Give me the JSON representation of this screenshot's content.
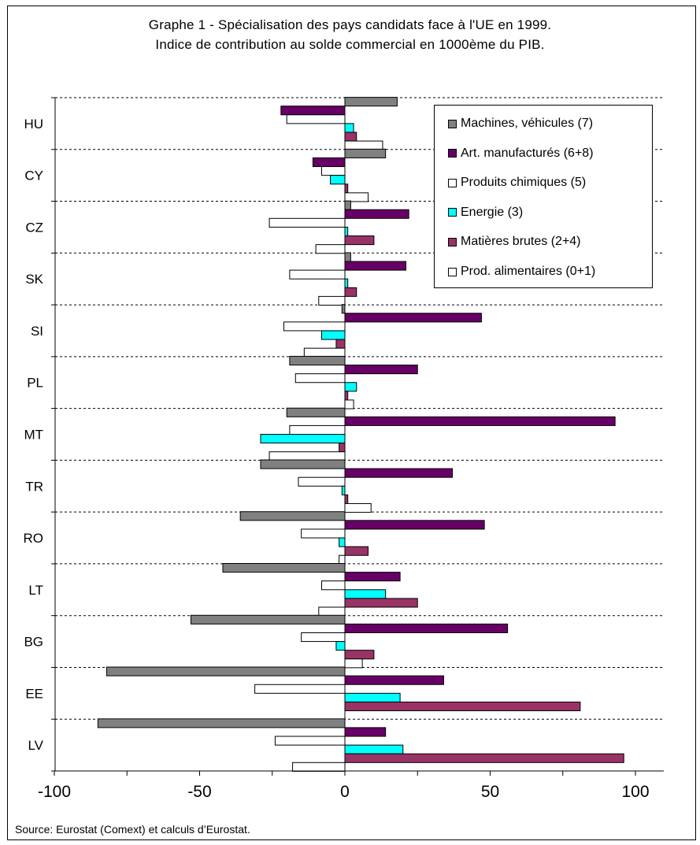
{
  "title": "Graphe 1 - Spécialisation des pays candidats face à l'UE en 1999.",
  "subtitle": "Indice de contribution au solde commercial en 1000ème du PIB.",
  "source": "Source: Eurostat (Comext) et calculs d’Eurostat.",
  "chart_data": {
    "type": "bar",
    "orientation": "horizontal",
    "categories": [
      "HU",
      "CY",
      "CZ",
      "SK",
      "SI",
      "PL",
      "MT",
      "TR",
      "RO",
      "LT",
      "BG",
      "EE",
      "LV"
    ],
    "series": [
      {
        "name": "Machines, véhicules (7)",
        "color": "#808080",
        "values": [
          18,
          14,
          2,
          2,
          -1,
          -19,
          -20,
          -29,
          -36,
          -42,
          -53,
          -82,
          -85
        ]
      },
      {
        "name": "Art. manufacturés (6+8)",
        "color": "#660066",
        "values": [
          -22,
          -11,
          22,
          21,
          47,
          25,
          93,
          37,
          48,
          19,
          56,
          34,
          14
        ]
      },
      {
        "name": "Produits chimiques (5)",
        "color": "#ffffff",
        "values": [
          -20,
          -8,
          -26,
          -19,
          -21,
          -17,
          -19,
          -16,
          -15,
          -8,
          -15,
          -31,
          -24
        ]
      },
      {
        "name": "Energie (3)",
        "color": "#00ffff",
        "values": [
          3,
          -5,
          1,
          1,
          -8,
          4,
          -29,
          -1,
          -2,
          14,
          -3,
          19,
          20
        ]
      },
      {
        "name": "Matières brutes (2+4)",
        "color": "#993366",
        "values": [
          4,
          1,
          10,
          4,
          -3,
          1,
          -2,
          1,
          8,
          25,
          10,
          81,
          96
        ]
      },
      {
        "name": "Prod. alimentaires (0+1)",
        "color": "#ffffff",
        "values": [
          13,
          8,
          -10,
          -9,
          -14,
          3,
          -26,
          9,
          -2,
          -9,
          6,
          0,
          -18
        ]
      }
    ],
    "xlim": [
      -100,
      110
    ],
    "xticks": [
      "-100",
      "-50",
      "0",
      "50",
      "100"
    ],
    "xtick_values": [
      -100,
      -50,
      0,
      50,
      100
    ],
    "grid": "dashed horizontal separators between countries",
    "legend_position": "top-right",
    "xlabel": "",
    "ylabel": ""
  }
}
